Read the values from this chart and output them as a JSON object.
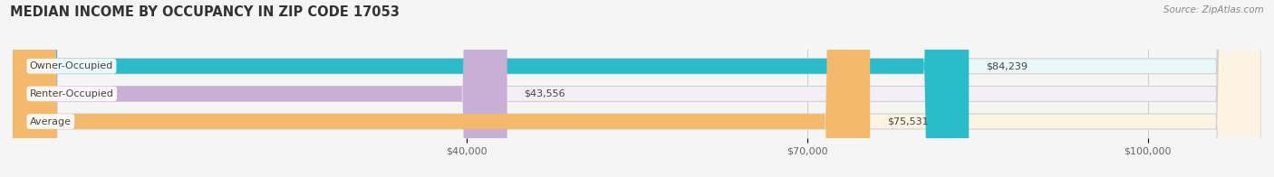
{
  "title": "MEDIAN INCOME BY OCCUPANCY IN ZIP CODE 17053",
  "source": "Source: ZipAtlas.com",
  "categories": [
    "Owner-Occupied",
    "Renter-Occupied",
    "Average"
  ],
  "values": [
    84239,
    43556,
    75531
  ],
  "bar_colors": [
    "#2bbcca",
    "#c9aed6",
    "#f5b96e"
  ],
  "bar_bg_colors": [
    "#e8f8fa",
    "#f3eef8",
    "#fdf3e3"
  ],
  "label_values": [
    "$84,239",
    "$43,556",
    "$75,531"
  ],
  "xlim": [
    0,
    110000
  ],
  "xticks": [
    40000,
    70000,
    100000
  ],
  "xticklabels": [
    "$40,000",
    "$70,000",
    "$100,000"
  ],
  "figsize": [
    14.06,
    1.96
  ],
  "dpi": 100,
  "background_color": "#f5f5f5"
}
